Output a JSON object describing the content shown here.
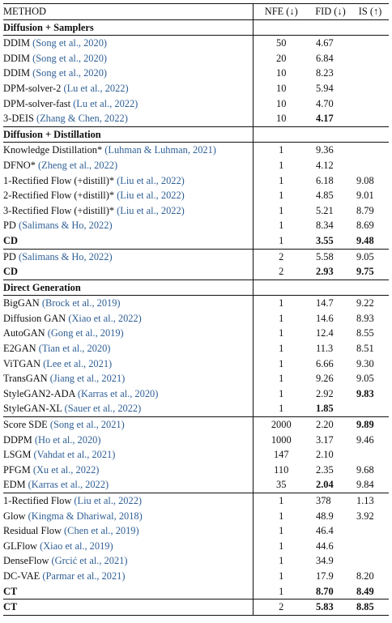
{
  "header": {
    "method": "METHOD",
    "nfe": "NFE (↓)",
    "fid": "FID (↓)",
    "is": "IS (↑)"
  },
  "sections": [
    {
      "title": "Diffusion + Samplers",
      "groups": [
        [
          {
            "name": "DDIM ",
            "cite": "(Song et al., 2020)",
            "nfe": "50",
            "fid": "4.67",
            "is": "",
            "bold_name": false,
            "bold_fid": false,
            "bold_is": false
          },
          {
            "name": "DDIM ",
            "cite": "(Song et al., 2020)",
            "nfe": "20",
            "fid": "6.84",
            "is": "",
            "bold_name": false,
            "bold_fid": false,
            "bold_is": false
          },
          {
            "name": "DDIM ",
            "cite": "(Song et al., 2020)",
            "nfe": "10",
            "fid": "8.23",
            "is": "",
            "bold_name": false,
            "bold_fid": false,
            "bold_is": false
          },
          {
            "name": "DPM-solver-2 ",
            "cite": "(Lu et al., 2022)",
            "nfe": "10",
            "fid": "5.94",
            "is": "",
            "bold_name": false,
            "bold_fid": false,
            "bold_is": false
          },
          {
            "name": "DPM-solver-fast ",
            "cite": "(Lu et al., 2022)",
            "nfe": "10",
            "fid": "4.70",
            "is": "",
            "bold_name": false,
            "bold_fid": false,
            "bold_is": false
          },
          {
            "name": "3-DEIS ",
            "cite": "(Zhang & Chen, 2022)",
            "nfe": "10",
            "fid": "4.17",
            "is": "",
            "bold_name": false,
            "bold_fid": true,
            "bold_is": false
          }
        ]
      ]
    },
    {
      "title": "Diffusion + Distillation",
      "groups": [
        [
          {
            "name": "Knowledge Distillation* ",
            "cite": "(Luhman & Luhman, 2021)",
            "nfe": "1",
            "fid": "9.36",
            "is": "",
            "bold_name": false,
            "bold_fid": false,
            "bold_is": false
          },
          {
            "name": "DFNO* ",
            "cite": "(Zheng et al., 2022)",
            "nfe": "1",
            "fid": "4.12",
            "is": "",
            "bold_name": false,
            "bold_fid": false,
            "bold_is": false
          },
          {
            "name": "1-Rectified Flow (+distill)* ",
            "cite": "(Liu et al., 2022)",
            "nfe": "1",
            "fid": "6.18",
            "is": "9.08",
            "bold_name": false,
            "bold_fid": false,
            "bold_is": false
          },
          {
            "name": "2-Rectified Flow (+distill)* ",
            "cite": "(Liu et al., 2022)",
            "nfe": "1",
            "fid": "4.85",
            "is": "9.01",
            "bold_name": false,
            "bold_fid": false,
            "bold_is": false
          },
          {
            "name": "3-Rectified Flow (+distill)* ",
            "cite": "(Liu et al., 2022)",
            "nfe": "1",
            "fid": "5.21",
            "is": "8.79",
            "bold_name": false,
            "bold_fid": false,
            "bold_is": false
          },
          {
            "name": "PD ",
            "cite": "(Salimans & Ho, 2022)",
            "nfe": "1",
            "fid": "8.34",
            "is": "8.69",
            "bold_name": false,
            "bold_fid": false,
            "bold_is": false
          },
          {
            "name": "CD",
            "cite": "",
            "nfe": "1",
            "fid": "3.55",
            "is": "9.48",
            "bold_name": true,
            "bold_fid": true,
            "bold_is": true
          }
        ],
        [
          {
            "name": "PD ",
            "cite": "(Salimans & Ho, 2022)",
            "nfe": "2",
            "fid": "5.58",
            "is": "9.05",
            "bold_name": false,
            "bold_fid": false,
            "bold_is": false
          },
          {
            "name": "CD",
            "cite": "",
            "nfe": "2",
            "fid": "2.93",
            "is": "9.75",
            "bold_name": true,
            "bold_fid": true,
            "bold_is": true
          }
        ]
      ]
    },
    {
      "title": "Direct Generation",
      "groups": [
        [
          {
            "name": "BigGAN ",
            "cite": "(Brock et al., 2019)",
            "nfe": "1",
            "fid": "14.7",
            "is": "9.22",
            "bold_name": false,
            "bold_fid": false,
            "bold_is": false
          },
          {
            "name": "Diffusion GAN ",
            "cite": "(Xiao et al., 2022)",
            "nfe": "1",
            "fid": "14.6",
            "is": "8.93",
            "bold_name": false,
            "bold_fid": false,
            "bold_is": false
          },
          {
            "name": "AutoGAN ",
            "cite": "(Gong et al., 2019)",
            "nfe": "1",
            "fid": "12.4",
            "is": "8.55",
            "bold_name": false,
            "bold_fid": false,
            "bold_is": false
          },
          {
            "name": "E2GAN ",
            "cite": "(Tian et al., 2020)",
            "nfe": "1",
            "fid": "11.3",
            "is": "8.51",
            "bold_name": false,
            "bold_fid": false,
            "bold_is": false
          },
          {
            "name": "ViTGAN ",
            "cite": "(Lee et al., 2021)",
            "nfe": "1",
            "fid": "6.66",
            "is": "9.30",
            "bold_name": false,
            "bold_fid": false,
            "bold_is": false
          },
          {
            "name": "TransGAN ",
            "cite": "(Jiang et al., 2021)",
            "nfe": "1",
            "fid": "9.26",
            "is": "9.05",
            "bold_name": false,
            "bold_fid": false,
            "bold_is": false
          },
          {
            "name": "StyleGAN2-ADA ",
            "cite": "(Karras et al., 2020)",
            "nfe": "1",
            "fid": "2.92",
            "is": "9.83",
            "bold_name": false,
            "bold_fid": false,
            "bold_is": true
          },
          {
            "name": "StyleGAN-XL ",
            "cite": "(Sauer et al., 2022)",
            "nfe": "1",
            "fid": "1.85",
            "is": "",
            "bold_name": false,
            "bold_fid": true,
            "bold_is": false
          }
        ],
        [
          {
            "name": "Score SDE ",
            "cite": "(Song et al., 2021)",
            "nfe": "2000",
            "fid": "2.20",
            "is": "9.89",
            "bold_name": false,
            "bold_fid": false,
            "bold_is": true
          },
          {
            "name": "DDPM ",
            "cite": "(Ho et al., 2020)",
            "nfe": "1000",
            "fid": "3.17",
            "is": "9.46",
            "bold_name": false,
            "bold_fid": false,
            "bold_is": false
          },
          {
            "name": "LSGM ",
            "cite": "(Vahdat et al., 2021)",
            "nfe": "147",
            "fid": "2.10",
            "is": "",
            "bold_name": false,
            "bold_fid": false,
            "bold_is": false
          },
          {
            "name": "PFGM ",
            "cite": "(Xu et al., 2022)",
            "nfe": "110",
            "fid": "2.35",
            "is": "9.68",
            "bold_name": false,
            "bold_fid": false,
            "bold_is": false
          },
          {
            "name": "EDM ",
            "cite": "(Karras et al., 2022)",
            "nfe": "35",
            "fid": "2.04",
            "is": "9.84",
            "bold_name": false,
            "bold_fid": true,
            "bold_is": false
          }
        ],
        [
          {
            "name": "1-Rectified Flow ",
            "cite": "(Liu et al., 2022)",
            "nfe": "1",
            "fid": "378",
            "is": "1.13",
            "bold_name": false,
            "bold_fid": false,
            "bold_is": false
          },
          {
            "name": "Glow ",
            "cite": "(Kingma & Dhariwal, 2018)",
            "nfe": "1",
            "fid": "48.9",
            "is": "3.92",
            "bold_name": false,
            "bold_fid": false,
            "bold_is": false
          },
          {
            "name": "Residual Flow ",
            "cite": "(Chen et al., 2019)",
            "nfe": "1",
            "fid": "46.4",
            "is": "",
            "bold_name": false,
            "bold_fid": false,
            "bold_is": false
          },
          {
            "name": "GLFlow ",
            "cite": "(Xiao et al., 2019)",
            "nfe": "1",
            "fid": "44.6",
            "is": "",
            "bold_name": false,
            "bold_fid": false,
            "bold_is": false
          },
          {
            "name": "DenseFlow ",
            "cite": "(Grcić et al., 2021)",
            "nfe": "1",
            "fid": "34.9",
            "is": "",
            "bold_name": false,
            "bold_fid": false,
            "bold_is": false
          },
          {
            "name": "DC-VAE ",
            "cite": "(Parmar et al., 2021)",
            "nfe": "1",
            "fid": "17.9",
            "is": "8.20",
            "bold_name": false,
            "bold_fid": false,
            "bold_is": false
          },
          {
            "name": "CT",
            "cite": "",
            "nfe": "1",
            "fid": "8.70",
            "is": "8.49",
            "bold_name": true,
            "bold_fid": true,
            "bold_is": true
          }
        ],
        [
          {
            "name": "CT",
            "cite": "",
            "nfe": "2",
            "fid": "5.83",
            "is": "8.85",
            "bold_name": true,
            "bold_fid": true,
            "bold_is": true
          }
        ]
      ]
    }
  ]
}
